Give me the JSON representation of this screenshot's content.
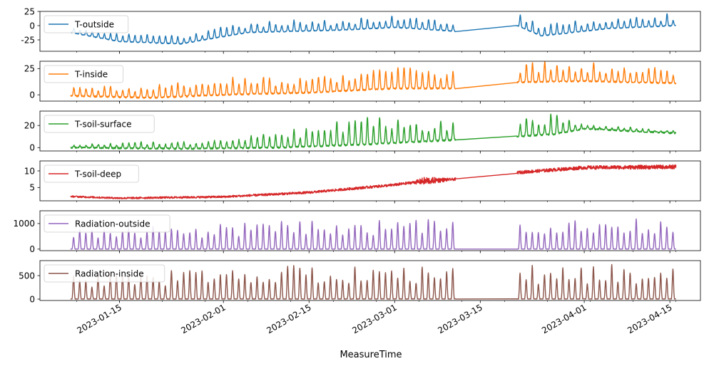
{
  "chart_data": {
    "type": "line",
    "layout": "stacked-subplots",
    "xlabel": "MeasureTime",
    "x_range": [
      "2023-01-02",
      "2023-04-20"
    ],
    "x_ticks": [
      "2023-01-15",
      "2023-02-01",
      "2023-02-15",
      "2023-03-01",
      "2023-03-15",
      "2023-04-01",
      "2023-04-15"
    ],
    "x_tick_rotation_deg": 30,
    "data_span": {
      "start": "2023-01-07",
      "end": "2023-04-16"
    },
    "gap": {
      "start": "2023-03-11",
      "end": "2023-03-21"
    },
    "legend_position": "upper-left",
    "series": [
      {
        "name": "T-outside",
        "color": "#1f77b4",
        "ylim": [
          -45,
          25
        ],
        "yticks": [
          -25,
          0,
          25
        ],
        "pattern": "daily cycles",
        "baseline": [
          [
            "2023-01-07",
            -12
          ],
          [
            "2023-01-15",
            -28
          ],
          [
            "2023-01-25",
            -32
          ],
          [
            "2023-02-05",
            -12
          ],
          [
            "2023-02-20",
            -8
          ],
          [
            "2023-03-01",
            -3
          ],
          [
            "2023-03-11",
            -10
          ],
          [
            "2023-03-21",
            0
          ],
          [
            "2023-03-25",
            -18
          ],
          [
            "2023-04-05",
            -5
          ],
          [
            "2023-04-16",
            0
          ]
        ],
        "amplitude": [
          [
            "2023-01-07",
            10
          ],
          [
            "2023-02-01",
            18
          ],
          [
            "2023-03-01",
            20
          ],
          [
            "2023-04-16",
            20
          ]
        ],
        "gap_values": [
          -17,
          2
        ]
      },
      {
        "name": "T-inside",
        "color": "#ff7f0e",
        "ylim": [
          -6,
          32
        ],
        "yticks": [
          0,
          25
        ],
        "pattern": "daily cycles",
        "baseline": [
          [
            "2023-01-07",
            -1
          ],
          [
            "2023-01-20",
            -3
          ],
          [
            "2023-02-01",
            0
          ],
          [
            "2023-02-15",
            2
          ],
          [
            "2023-03-01",
            6
          ],
          [
            "2023-03-11",
            6
          ],
          [
            "2023-03-21",
            12
          ],
          [
            "2023-04-01",
            13
          ],
          [
            "2023-04-16",
            11
          ]
        ],
        "amplitude": [
          [
            "2023-01-07",
            8
          ],
          [
            "2023-02-01",
            15
          ],
          [
            "2023-03-01",
            20
          ],
          [
            "2023-04-01",
            18
          ],
          [
            "2023-04-16",
            14
          ]
        ],
        "gap_values": [
          8,
          19
        ]
      },
      {
        "name": "T-soil-surface",
        "color": "#2ca02c",
        "ylim": [
          -3,
          33
        ],
        "yticks": [
          0,
          20
        ],
        "pattern": "daily cycles",
        "baseline": [
          [
            "2023-01-07",
            0
          ],
          [
            "2023-01-25",
            -1
          ],
          [
            "2023-02-10",
            0
          ],
          [
            "2023-02-25",
            3
          ],
          [
            "2023-03-11",
            7
          ],
          [
            "2023-03-21",
            10
          ],
          [
            "2023-03-27",
            12
          ],
          [
            "2023-04-01",
            17
          ],
          [
            "2023-04-16",
            13
          ]
        ],
        "amplitude": [
          [
            "2023-01-07",
            3
          ],
          [
            "2023-02-01",
            8
          ],
          [
            "2023-02-25",
            25
          ],
          [
            "2023-03-11",
            18
          ],
          [
            "2023-03-27",
            18
          ],
          [
            "2023-04-02",
            3
          ],
          [
            "2023-04-16",
            3
          ]
        ],
        "gap_values": [
          8,
          18
        ]
      },
      {
        "name": "T-soil-deep",
        "color": "#d62728",
        "ylim": [
          1,
          13
        ],
        "yticks": [
          5,
          10
        ],
        "pattern": "slow trend",
        "baseline": [
          [
            "2023-01-07",
            2.3
          ],
          [
            "2023-01-15",
            1.8
          ],
          [
            "2023-02-01",
            2.2
          ],
          [
            "2023-02-15",
            3.5
          ],
          [
            "2023-03-01",
            5.8
          ],
          [
            "2023-03-06",
            7.0
          ],
          [
            "2023-03-11",
            7.5
          ],
          [
            "2023-03-21",
            9.5
          ],
          [
            "2023-04-01",
            11.0
          ],
          [
            "2023-04-16",
            11.2
          ]
        ],
        "amplitude": [
          [
            "2023-01-07",
            0.3
          ],
          [
            "2023-03-04",
            0.5
          ],
          [
            "2023-03-06",
            1.5
          ],
          [
            "2023-03-10",
            0.5
          ],
          [
            "2023-04-16",
            0.8
          ]
        ],
        "gap_values": [
          7.5,
          9.5
        ]
      },
      {
        "name": "Radiation-outside",
        "color": "#9467bd",
        "ylim": [
          -60,
          1500
        ],
        "yticks": [
          0,
          1000
        ],
        "pattern": "daily peaks",
        "peak": [
          [
            "2023-01-07",
            700
          ],
          [
            "2023-02-01",
            1000
          ],
          [
            "2023-03-01",
            1100
          ],
          [
            "2023-04-16",
            1250
          ]
        ],
        "gap_values": [
          0,
          0
        ]
      },
      {
        "name": "Radiation-inside",
        "color": "#8c564b",
        "ylim": [
          -30,
          820
        ],
        "yticks": [
          0,
          500
        ],
        "pattern": "daily peaks",
        "peak": [
          [
            "2023-01-07",
            500
          ],
          [
            "2023-02-01",
            700
          ],
          [
            "2023-03-01",
            650
          ],
          [
            "2023-04-16",
            720
          ]
        ],
        "gap_values": [
          0,
          0
        ]
      }
    ]
  }
}
